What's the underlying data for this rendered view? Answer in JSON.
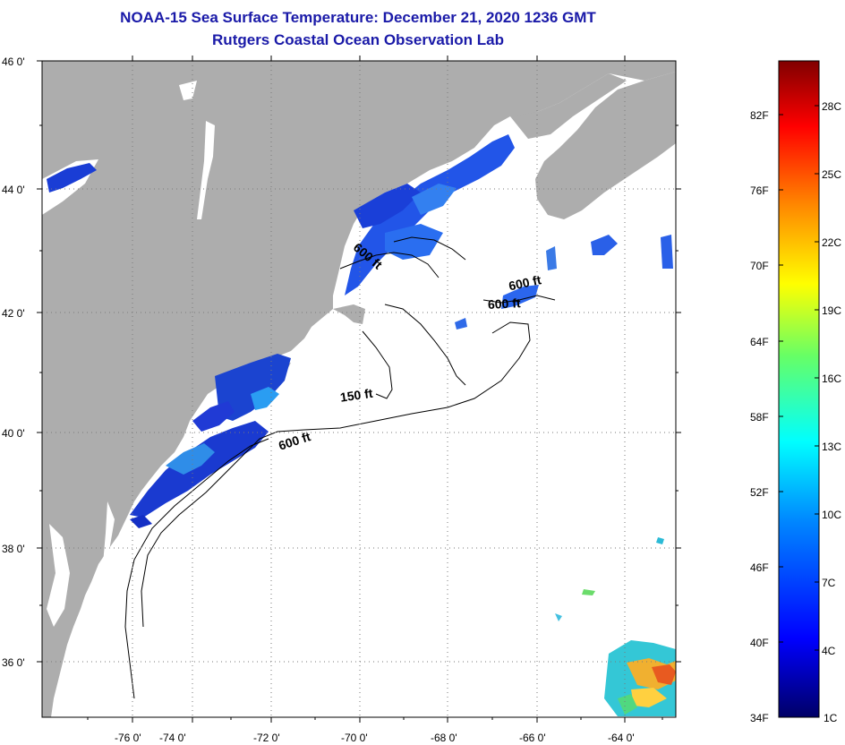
{
  "title": {
    "line1": "NOAA-15 Sea Surface Temperature:  December 21, 2020 1236 GMT",
    "line2": "Rutgers Coastal Ocean Observation Lab"
  },
  "map": {
    "lat_labels": [
      "46 0'",
      "44 0'",
      "42 0'",
      "40 0'",
      "38 0'",
      "36 0'"
    ],
    "lon_labels": [
      "-76 0'",
      "-74 0'",
      "-72 0'",
      "-70 0'",
      "-68 0'",
      "-66 0'",
      "-64 0'"
    ],
    "contour_labels": [
      "600 ft",
      "600 ft",
      "600 ft",
      "150 ft",
      "600 ft"
    ],
    "colors": {
      "land": "#adadad",
      "ocean": "#ffffff",
      "grid": "#7a7a7a"
    }
  },
  "colorbar": {
    "f_labels": [
      "82F",
      "76F",
      "70F",
      "64F",
      "58F",
      "52F",
      "46F",
      "40F",
      "34F"
    ],
    "c_labels": [
      "28C",
      "25C",
      "22C",
      "19C",
      "16C",
      "13C",
      "10C",
      "7C",
      "4C",
      "1C"
    ],
    "gradient": [
      "#000066",
      "#0000ff",
      "#0088ff",
      "#00ffff",
      "#66ff66",
      "#ffff00",
      "#ff8800",
      "#ff0000",
      "#800000"
    ]
  }
}
